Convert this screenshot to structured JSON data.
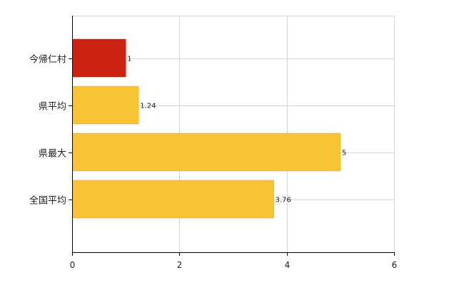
{
  "chart_data": {
    "type": "bar",
    "orientation": "horizontal",
    "categories": [
      "今帰仁村",
      "県平均",
      "県最大",
      "全国平均"
    ],
    "values": [
      1,
      1.24,
      5,
      3.76
    ],
    "data_labels": [
      "1",
      "1.24",
      "5",
      "3.76"
    ],
    "bar_colors": [
      "#cc2211",
      "#f7c436",
      "#f7c436",
      "#f7c436"
    ],
    "title": "",
    "xlabel": "",
    "ylabel": "",
    "xlim": [
      0,
      6
    ],
    "x_ticks": [
      0,
      2,
      4,
      6
    ],
    "x_tick_labels": [
      "0",
      "2",
      "4",
      "6"
    ],
    "grid": true,
    "legend": "none",
    "colors": {
      "highlight": "#cc2211",
      "bar": "#f7c436",
      "bar_border": "#e3ad21",
      "grid": "#d6d6d6",
      "axis": "#000000"
    }
  }
}
